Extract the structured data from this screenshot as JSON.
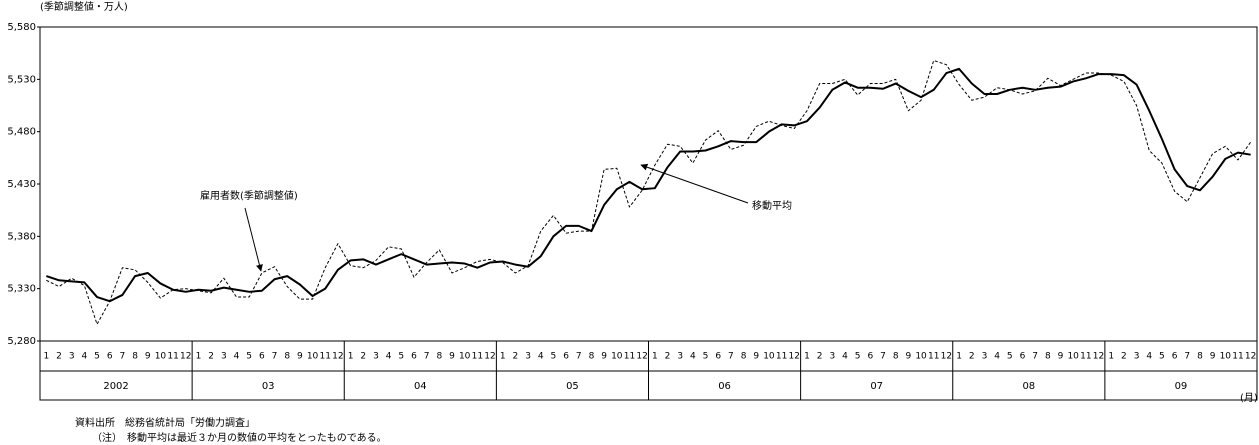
{
  "chart_data": {
    "type": "line",
    "y_unit": "(季節調整値・万人)",
    "x_unit": "(月)",
    "categories": [
      "1",
      "2",
      "3",
      "4",
      "5",
      "6",
      "7",
      "8",
      "9",
      "10",
      "11",
      "12",
      "1",
      "2",
      "3",
      "4",
      "5",
      "6",
      "7",
      "8",
      "9",
      "10",
      "11",
      "12",
      "1",
      "2",
      "3",
      "4",
      "5",
      "6",
      "7",
      "8",
      "9",
      "10",
      "11",
      "12",
      "1",
      "2",
      "3",
      "4",
      "5",
      "6",
      "7",
      "8",
      "9",
      "10",
      "11",
      "12",
      "1",
      "2",
      "3",
      "4",
      "5",
      "6",
      "7",
      "8",
      "9",
      "10",
      "11",
      "12",
      "1",
      "2",
      "3",
      "4",
      "5",
      "6",
      "7",
      "8",
      "9",
      "10",
      "11",
      "12",
      "1",
      "2",
      "3",
      "4",
      "5",
      "6",
      "7",
      "8",
      "9",
      "10",
      "11",
      "12",
      "1",
      "2",
      "3",
      "4",
      "5",
      "6",
      "7",
      "8",
      "9",
      "10",
      "11",
      "12"
    ],
    "years": [
      "2002",
      "03",
      "04",
      "05",
      "06",
      "07",
      "08",
      "09"
    ],
    "series": [
      {
        "name": "雇用者数(季節調整値)",
        "color": "#000000",
        "dash": true,
        "values": [
          5338,
          5332,
          5340,
          5333,
          5296,
          5318,
          5350,
          5348,
          5336,
          5321,
          5329,
          5330,
          5328,
          5326,
          5340,
          5322,
          5322,
          5345,
          5351,
          5332,
          5320,
          5320,
          5350,
          5373,
          5352,
          5350,
          5357,
          5370,
          5368,
          5341,
          5355,
          5367,
          5345,
          5350,
          5356,
          5358,
          5355,
          5345,
          5352,
          5385,
          5400,
          5383,
          5385,
          5385,
          5444,
          5445,
          5408,
          5424,
          5448,
          5468,
          5466,
          5450,
          5472,
          5481,
          5463,
          5467,
          5485,
          5490,
          5486,
          5483,
          5500,
          5526,
          5526,
          5530,
          5515,
          5526,
          5526,
          5530,
          5500,
          5510,
          5548,
          5544,
          5525,
          5510,
          5513,
          5522,
          5520,
          5516,
          5519,
          5531,
          5524,
          5530,
          5536,
          5536,
          5534,
          5528,
          5505,
          5462,
          5450,
          5423,
          5413,
          5436,
          5459,
          5466,
          5453,
          5470
        ]
      },
      {
        "name": "移動平均",
        "color": "#000000",
        "dash": false,
        "values": [
          5342,
          5338,
          5337,
          5336,
          5322,
          5318,
          5324,
          5342,
          5345,
          5335,
          5329,
          5327,
          5329,
          5328,
          5331,
          5329,
          5327,
          5328,
          5339,
          5342,
          5334,
          5323,
          5330,
          5348,
          5357,
          5358,
          5353,
          5358,
          5363,
          5358,
          5353,
          5354,
          5355,
          5354,
          5350,
          5355,
          5356,
          5353,
          5351,
          5361,
          5380,
          5390,
          5390,
          5385,
          5410,
          5425,
          5432,
          5425,
          5426,
          5446,
          5461,
          5461,
          5462,
          5466,
          5471,
          5470,
          5470,
          5480,
          5487,
          5486,
          5490,
          5503,
          5520,
          5527,
          5522,
          5522,
          5521,
          5526,
          5519,
          5513,
          5520,
          5536,
          5540,
          5526,
          5516,
          5516,
          5520,
          5522,
          5520,
          5522,
          5523,
          5528,
          5531,
          5535,
          5535,
          5534,
          5525,
          5500,
          5473,
          5444,
          5428,
          5424,
          5437,
          5454,
          5460,
          5458
        ]
      }
    ],
    "ylim": [
      5280,
      5580
    ],
    "yticks": [
      {
        "value": 5280,
        "label": "5,280"
      },
      {
        "value": 5330,
        "label": "5,330"
      },
      {
        "value": 5380,
        "label": "5,380"
      },
      {
        "value": 5430,
        "label": "5,430"
      },
      {
        "value": 5480,
        "label": "5,480"
      },
      {
        "value": 5530,
        "label": "5,530"
      },
      {
        "value": 5580,
        "label": "5,580"
      }
    ],
    "grid": false,
    "annotations": [
      "雇用者数(季節調整値)",
      "移動平均"
    ],
    "notes": [
      "資料出所　総務省統計局「労働力調査」",
      "（注）　移動平均は最近３か月の数値の平均をとったものである。"
    ]
  }
}
